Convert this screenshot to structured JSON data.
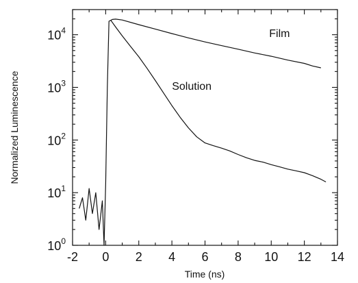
{
  "chart_data": {
    "type": "line",
    "title": "",
    "xlabel": "Time (ns)",
    "ylabel": "Normalized Luminescence",
    "xlim": [
      -2,
      14
    ],
    "ylim": [
      1,
      30000
    ],
    "yscale": "log",
    "grid": false,
    "legend": "none",
    "x_ticks": [
      {
        "value": -2,
        "label": "-2"
      },
      {
        "value": 0,
        "label": "0"
      },
      {
        "value": 2,
        "label": "2"
      },
      {
        "value": 4,
        "label": "4"
      },
      {
        "value": 6,
        "label": "6"
      },
      {
        "value": 8,
        "label": "8"
      },
      {
        "value": 10,
        "label": "10"
      },
      {
        "value": 12,
        "label": "12"
      },
      {
        "value": 14,
        "label": "14"
      }
    ],
    "y_ticks": [
      {
        "value": 1,
        "base": "10",
        "exp": "0"
      },
      {
        "value": 10,
        "base": "10",
        "exp": "1"
      },
      {
        "value": 100,
        "base": "10",
        "exp": "2"
      },
      {
        "value": 1000,
        "base": "10",
        "exp": "3"
      },
      {
        "value": 10000,
        "base": "10",
        "exp": "4"
      }
    ],
    "series": [
      {
        "name": "Film",
        "x": [
          -1.6,
          -1.4,
          -1.2,
          -1.0,
          -0.8,
          -0.6,
          -0.4,
          -0.2,
          -0.1,
          0.0,
          0.1,
          0.2,
          0.4,
          0.6,
          1,
          2,
          3,
          4,
          5,
          6,
          7,
          8,
          9,
          10,
          11,
          12,
          12.5,
          13.0
        ],
        "y": [
          5,
          8,
          3,
          12,
          4,
          10,
          2,
          7,
          1,
          15,
          1000,
          18000,
          19500,
          19800,
          19000,
          15500,
          12800,
          10500,
          8700,
          7300,
          6200,
          5300,
          4500,
          3900,
          3300,
          2850,
          2550,
          2350
        ]
      },
      {
        "name": "Solution",
        "x": [
          0.3,
          0.6,
          1.0,
          1.5,
          2.0,
          2.5,
          3.0,
          3.5,
          4.0,
          4.5,
          5.0,
          5.5,
          6.0,
          6.5,
          7.0,
          7.5,
          8.0,
          8.5,
          9.0,
          9.5,
          10.0,
          10.5,
          11.0,
          11.5,
          12.0,
          12.5,
          13.0,
          13.3
        ],
        "y": [
          19000,
          14000,
          9500,
          6000,
          3800,
          2300,
          1350,
          780,
          450,
          270,
          170,
          115,
          88,
          78,
          70,
          62,
          53,
          46,
          41,
          38,
          34,
          31,
          28,
          26,
          24,
          21,
          18,
          16
        ]
      }
    ],
    "annotations": [
      {
        "text": "Film",
        "x": 10.5,
        "y": 9000
      },
      {
        "text": "Solution",
        "x": 5.2,
        "y": 900
      }
    ]
  }
}
